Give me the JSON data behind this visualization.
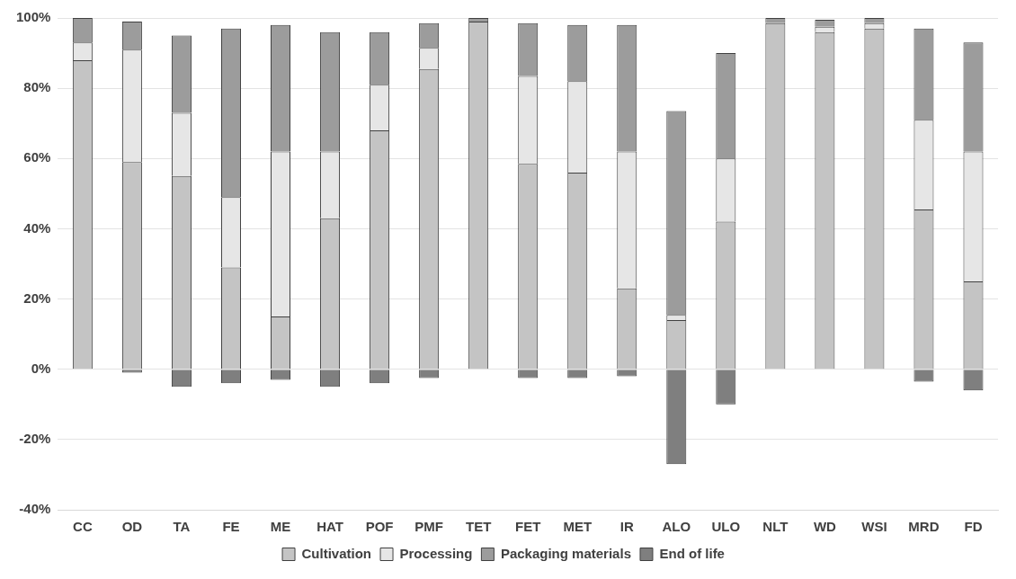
{
  "chart_data": {
    "type": "bar",
    "stacked": true,
    "categories": [
      "CC",
      "OD",
      "TA",
      "FE",
      "ME",
      "HAT",
      "POF",
      "PMF",
      "TET",
      "FET",
      "MET",
      "IR",
      "ALO",
      "ULO",
      "NLT",
      "WD",
      "WSI",
      "MRD",
      "FD"
    ],
    "series": [
      {
        "name": "Cultivation",
        "color": "#c4c4c4",
        "values": [
          88,
          59,
          55,
          29,
          15,
          43,
          68,
          85.5,
          99,
          58.5,
          56,
          23,
          14,
          42,
          98.5,
          96,
          97,
          45.5,
          25
        ]
      },
      {
        "name": "Processing",
        "color": "#e6e6e6",
        "values": [
          5,
          32,
          18,
          20,
          47,
          19,
          13,
          6,
          0,
          25,
          26,
          39,
          1.5,
          18,
          0,
          1.5,
          1.5,
          25.5,
          37
        ]
      },
      {
        "name": "Packaging materials",
        "color": "#9c9c9c",
        "values": [
          7,
          8,
          22,
          48,
          36,
          34,
          15,
          7,
          1,
          15,
          16,
          36,
          58,
          30,
          1.5,
          2,
          1.5,
          26,
          31
        ]
      },
      {
        "name": "End of life",
        "color": "#7f7f7f",
        "values": [
          0,
          -1,
          -5,
          -4,
          -3,
          -5,
          -4,
          -2.5,
          0,
          -2.5,
          -2.5,
          -2,
          -27,
          -10,
          0,
          0,
          0,
          -3.5,
          -6
        ]
      }
    ],
    "ylim": [
      -40,
      100
    ],
    "yticks": [
      {
        "value": -40,
        "label": "-40%"
      },
      {
        "value": -20,
        "label": "-20%"
      },
      {
        "value": 0,
        "label": "0%"
      },
      {
        "value": 20,
        "label": "20%"
      },
      {
        "value": 40,
        "label": "40%"
      },
      {
        "value": 60,
        "label": "60%"
      },
      {
        "value": 80,
        "label": "80%"
      },
      {
        "value": 100,
        "label": "100%"
      }
    ],
    "grid": "y",
    "legend": "bottom"
  }
}
